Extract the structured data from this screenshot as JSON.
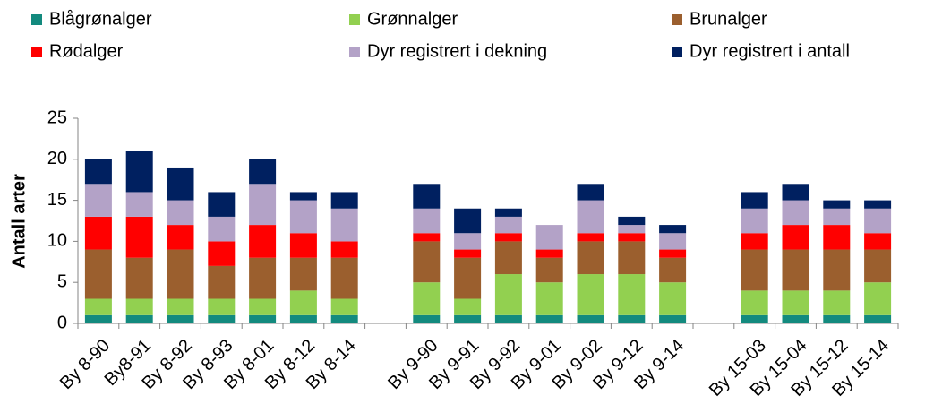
{
  "chart_data": {
    "type": "stacked_bar",
    "y_label": "Antall arter",
    "categories": [
      "By 8-90",
      "By8-91",
      "By 8-92",
      "By 8-93",
      "By 8-01",
      "By 8-12",
      "By 8-14",
      null,
      "By 9-90",
      "By 9-91",
      "By 9-92",
      "By 9-01",
      "By 9-02",
      "By 9-12",
      "By 9-14",
      null,
      "By 15-03",
      "By 15-04",
      "By 15-12",
      "By 15-14"
    ],
    "series": [
      {
        "name": "Blågrønalger",
        "color": "#138a7e",
        "values": [
          1,
          1,
          1,
          1,
          1,
          1,
          1,
          null,
          1,
          1,
          1,
          1,
          1,
          1,
          1,
          null,
          1,
          1,
          1,
          1
        ]
      },
      {
        "name": "Grønnalger",
        "color": "#92d050",
        "values": [
          2,
          2,
          2,
          2,
          2,
          3,
          2,
          null,
          4,
          2,
          5,
          4,
          5,
          5,
          4,
          null,
          3,
          3,
          3,
          4
        ]
      },
      {
        "name": "Brunalger",
        "color": "#9b5f2e",
        "values": [
          6,
          5,
          6,
          4,
          5,
          4,
          5,
          null,
          5,
          5,
          4,
          3,
          4,
          4,
          3,
          null,
          5,
          5,
          5,
          4
        ]
      },
      {
        "name": "Rødalger",
        "color": "#ff0000",
        "values": [
          4,
          5,
          3,
          3,
          4,
          3,
          2,
          null,
          1,
          1,
          1,
          1,
          1,
          1,
          1,
          null,
          2,
          3,
          3,
          2
        ]
      },
      {
        "name": "Dyr registrert i dekning",
        "color": "#b3a2c7",
        "values": [
          4,
          3,
          3,
          3,
          5,
          4,
          4,
          null,
          3,
          2,
          2,
          3,
          4,
          1,
          2,
          null,
          3,
          3,
          2,
          3
        ]
      },
      {
        "name": "Dyr registrert i antall",
        "color": "#002060",
        "values": [
          3,
          5,
          4,
          3,
          3,
          1,
          2,
          null,
          3,
          3,
          1,
          0,
          2,
          1,
          1,
          null,
          2,
          2,
          1,
          1
        ]
      }
    ],
    "ylim": [
      0,
      25
    ],
    "yticks": [
      0,
      5,
      10,
      15,
      20,
      25
    ]
  }
}
